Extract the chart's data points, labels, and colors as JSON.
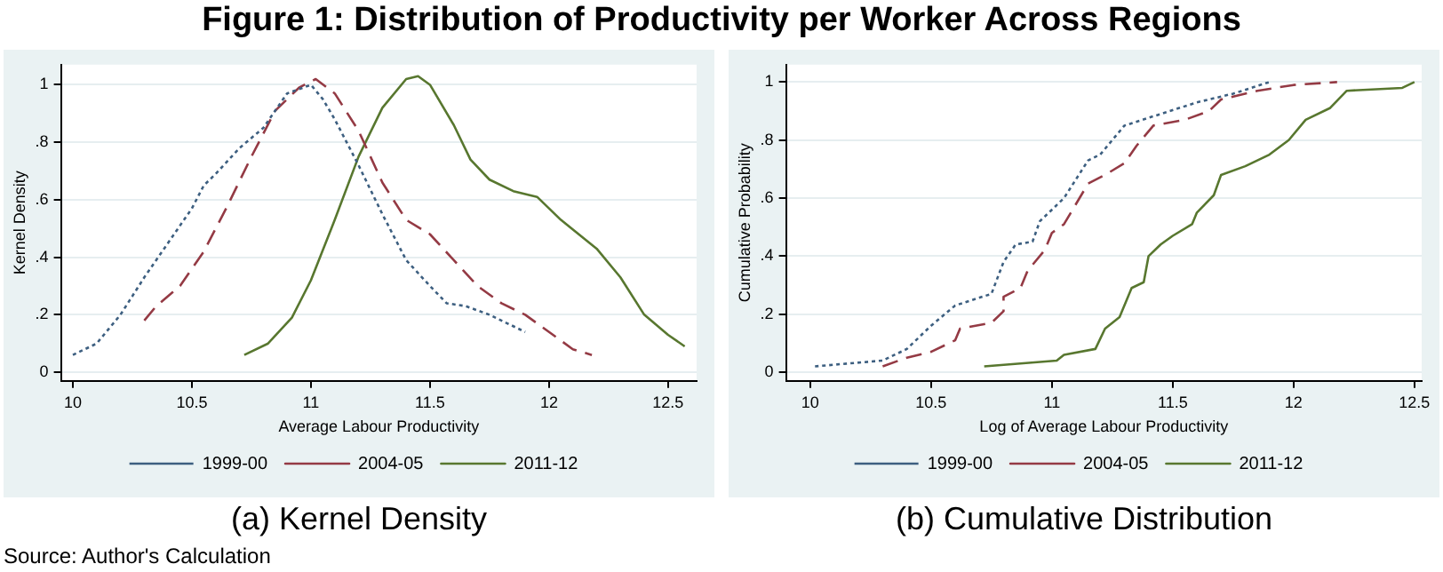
{
  "chart_data": [
    {
      "type": "other",
      "title": "Figure 1: Distribution of Productivity per Worker Across Regions",
      "annotations": [
        "Source: Author's Calculation"
      ]
    },
    {
      "type": "line",
      "title": "(a) Kernel Density",
      "xlabel": "Average Labour Productivity",
      "ylabel": "Kernel Density",
      "xlim": [
        9.95,
        12.62
      ],
      "ylim": [
        -0.03,
        1.07
      ],
      "xticks": [
        10,
        10.5,
        11,
        11.5,
        12,
        12.5
      ],
      "yticks": [
        {
          "value": 0,
          "label": "0"
        },
        {
          "value": 0.2,
          "label": ".2"
        },
        {
          "value": 0.4,
          "label": ".4"
        },
        {
          "value": 0.6,
          "label": ".6"
        },
        {
          "value": 0.8,
          "label": ".8"
        },
        {
          "value": 1,
          "label": "1"
        }
      ],
      "grid": "y",
      "legend": "bottom",
      "marker": "none",
      "series": [
        {
          "name": "1999-00",
          "color": "#3d5f80",
          "line_style": "dotted",
          "x": [
            10.0,
            10.1,
            10.2,
            10.3,
            10.4,
            10.5,
            10.55,
            10.6,
            10.7,
            10.8,
            10.85,
            10.9,
            11.0,
            11.05,
            11.1,
            11.2,
            11.3,
            11.4,
            11.5,
            11.57,
            11.65,
            11.75,
            11.9
          ],
          "values": [
            0.06,
            0.1,
            0.2,
            0.33,
            0.45,
            0.57,
            0.65,
            0.69,
            0.78,
            0.85,
            0.91,
            0.97,
            1.0,
            0.95,
            0.88,
            0.72,
            0.55,
            0.39,
            0.3,
            0.24,
            0.23,
            0.2,
            0.14
          ]
        },
        {
          "name": "2004-05",
          "color": "#943a44",
          "line_style": "dashed",
          "x": [
            10.3,
            10.35,
            10.45,
            10.55,
            10.65,
            10.75,
            10.85,
            10.95,
            11.02,
            11.1,
            11.2,
            11.3,
            11.4,
            11.5,
            11.6,
            11.7,
            11.8,
            11.9,
            12.0,
            12.1,
            12.18
          ],
          "values": [
            0.18,
            0.23,
            0.3,
            0.42,
            0.58,
            0.75,
            0.91,
            0.99,
            1.02,
            0.97,
            0.84,
            0.66,
            0.53,
            0.48,
            0.39,
            0.3,
            0.24,
            0.2,
            0.14,
            0.08,
            0.06
          ]
        },
        {
          "name": "2011-12",
          "color": "#58772f",
          "line_style": "solid",
          "x": [
            10.72,
            10.82,
            10.92,
            11.0,
            11.1,
            11.2,
            11.3,
            11.4,
            11.45,
            11.5,
            11.6,
            11.67,
            11.75,
            11.85,
            11.95,
            12.05,
            12.2,
            12.3,
            12.4,
            12.5,
            12.57
          ],
          "values": [
            0.06,
            0.1,
            0.19,
            0.32,
            0.53,
            0.75,
            0.92,
            1.02,
            1.03,
            1.0,
            0.86,
            0.74,
            0.67,
            0.63,
            0.61,
            0.53,
            0.43,
            0.33,
            0.2,
            0.13,
            0.09
          ]
        }
      ]
    },
    {
      "type": "line",
      "title": "(b) Cumulative Distribution",
      "xlabel": "Log of Average Labour Productivity",
      "ylabel": "Cumulative Probability",
      "xlim": [
        9.9,
        12.53
      ],
      "ylim": [
        -0.03,
        1.06
      ],
      "xticks": [
        10,
        10.5,
        11,
        11.5,
        12,
        12.5
      ],
      "yticks": [
        {
          "value": 0,
          "label": "0"
        },
        {
          "value": 0.2,
          "label": ".2"
        },
        {
          "value": 0.4,
          "label": ".4"
        },
        {
          "value": 0.6,
          "label": ".6"
        },
        {
          "value": 0.8,
          "label": ".8"
        },
        {
          "value": 1,
          "label": "1"
        }
      ],
      "grid": "y",
      "legend": "bottom",
      "marker": "none",
      "series": [
        {
          "name": "1999-00",
          "color": "#3d5f80",
          "line_style": "dotted",
          "x": [
            10.02,
            10.3,
            10.4,
            10.5,
            10.6,
            10.75,
            10.8,
            10.85,
            10.92,
            10.95,
            11.05,
            11.15,
            11.2,
            11.3,
            11.45,
            11.6,
            11.75,
            11.9
          ],
          "values": [
            0.02,
            0.04,
            0.08,
            0.16,
            0.23,
            0.27,
            0.38,
            0.44,
            0.45,
            0.52,
            0.6,
            0.73,
            0.75,
            0.85,
            0.89,
            0.93,
            0.96,
            1.0
          ]
        },
        {
          "name": "2004-05",
          "color": "#943a44",
          "line_style": "dashed",
          "x": [
            10.3,
            10.4,
            10.5,
            10.6,
            10.62,
            10.75,
            10.8,
            10.8,
            10.87,
            10.9,
            10.97,
            11.0,
            11.05,
            11.15,
            11.22,
            11.3,
            11.35,
            11.42,
            11.55,
            11.65,
            11.7,
            11.85,
            12.0,
            12.18
          ],
          "values": [
            0.02,
            0.05,
            0.07,
            0.11,
            0.15,
            0.17,
            0.21,
            0.26,
            0.29,
            0.35,
            0.42,
            0.48,
            0.51,
            0.65,
            0.68,
            0.72,
            0.78,
            0.85,
            0.87,
            0.9,
            0.94,
            0.97,
            0.99,
            1.0
          ]
        },
        {
          "name": "2011-12",
          "color": "#58772f",
          "line_style": "solid",
          "x": [
            10.72,
            11.02,
            11.05,
            11.18,
            11.22,
            11.28,
            11.33,
            11.38,
            11.4,
            11.45,
            11.5,
            11.58,
            11.6,
            11.67,
            11.7,
            11.8,
            11.9,
            11.98,
            12.05,
            12.15,
            12.22,
            12.45,
            12.5
          ],
          "values": [
            0.02,
            0.04,
            0.06,
            0.08,
            0.15,
            0.19,
            0.29,
            0.31,
            0.4,
            0.44,
            0.47,
            0.51,
            0.55,
            0.61,
            0.68,
            0.71,
            0.75,
            0.8,
            0.87,
            0.91,
            0.97,
            0.98,
            1.0
          ]
        }
      ]
    }
  ]
}
